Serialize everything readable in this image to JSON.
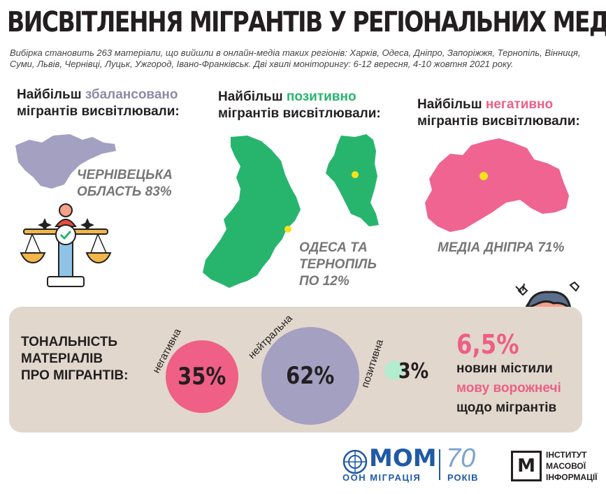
{
  "title": "ВИСВІТЛЕННЯ МІГРАНТІВ У РЕГІОНАЛЬНИХ МЕДІА",
  "subtitle": "Вибірка становить 263 матеріали, що вийшли в онлайн-медіа таких регіонів: Харків, Одеса,  Дніпро, Запоріжжя, Тернопіль, Вінниця, Суми, Львів, Чернівці, Луцьк, Ужгород, Івано-Франківськ. Дві хвилі моніторингу: 6-12 вересня, 4-10 жовтня 2021 року.",
  "balanced": {
    "line1_prefix": "Найбільш ",
    "line1_em": "збалансовано",
    "line2": "мігрантів висвітлювали:",
    "caption_line1": "ЧЕРНІВЕЦЬКА",
    "caption_line2": "ОБЛАСТЬ 83%"
  },
  "positive": {
    "line1_prefix": "Найбільш ",
    "line1_em": "позитивно",
    "line2": "мігрантів висвітлювали:",
    "caption_line1": "ОДЕСА ТА",
    "caption_line2": "ТЕРНОПІЛЬ",
    "caption_line3": "ПО 12%"
  },
  "negative": {
    "line1_prefix": "Найбільш ",
    "line1_em": "негативно",
    "line2": "мігрантів висвітлювали:",
    "caption": "МЕДІА ДНІПРА 71%"
  },
  "tone": {
    "label_line1": "ТОНАЛЬНІСТЬ",
    "label_line2": "МАТЕРІАЛІВ",
    "label_line3": "ПРО МІГРАНТІВ:",
    "items": [
      {
        "name": "негативна",
        "value": "35%",
        "color": "#ef5f86"
      },
      {
        "name": "нейтральна",
        "value": "62%",
        "color": "#a3a0c2"
      },
      {
        "name": "позитивна",
        "value": "3%",
        "color": "#27c478"
      }
    ]
  },
  "hate": {
    "value": "6,5%",
    "line1": "новин містили",
    "line2": "мову ворожнечі",
    "line3": "щодо мігрантів"
  },
  "logos": {
    "iom_name": "МОМ",
    "iom_sub": "ООН МІГРАЦІЯ",
    "anniv_num": "70",
    "anniv_sub": "РОКІВ",
    "imi_letter": "М",
    "imi_line1": "ІНСТИТУТ",
    "imi_line2": "МАСОВОЇ",
    "imi_line3": "ІНФОРМАЦІЇ"
  },
  "colors": {
    "balanced": "#8e8aa6",
    "positive": "#27b56e",
    "negative": "#ec5f86",
    "panel": "#e1d7cc",
    "iom_blue": "#1f5aa6"
  }
}
